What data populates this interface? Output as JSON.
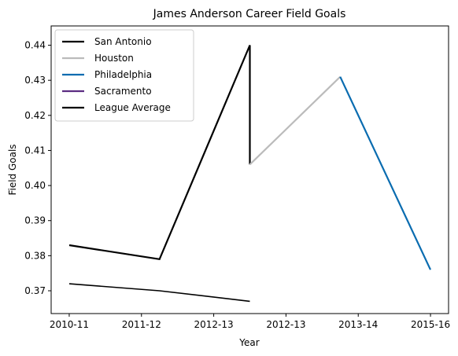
{
  "chart_data": {
    "type": "line",
    "title": "James Anderson  Career Field Goals",
    "xlabel": "Year",
    "ylabel": "Field Goals",
    "x_ticks": [
      "2010-11",
      "2011-12",
      "2012-13",
      "2012-13",
      "2013-14",
      "2015-16"
    ],
    "xlim": [
      -0.25,
      5.25
    ],
    "ylim": [
      0.3635,
      0.4455
    ],
    "y_ticks": [
      0.37,
      0.38,
      0.39,
      0.4,
      0.41,
      0.42,
      0.43,
      0.44
    ],
    "y_tick_labels": [
      "0.37",
      "0.38",
      "0.39",
      "0.40",
      "0.41",
      "0.42",
      "0.43",
      "0.44"
    ],
    "grid": false,
    "legend_placement": "top-left",
    "series": [
      {
        "name": "San Antonio",
        "color": "#000000",
        "points": [
          [
            0,
            0.383
          ],
          [
            1.25,
            0.379
          ],
          [
            2.5,
            0.44
          ],
          [
            2.5,
            0.406
          ]
        ]
      },
      {
        "name": "Houston",
        "color": "#bbbbbb",
        "points": [
          [
            2.5,
            0.406
          ],
          [
            3.75,
            0.431
          ]
        ]
      },
      {
        "name": "Philadelphia",
        "color": "#0a6cb0",
        "points": [
          [
            3.75,
            0.431
          ],
          [
            5,
            0.376
          ]
        ]
      },
      {
        "name": "Sacramento",
        "color": "#5b2d82",
        "points": []
      },
      {
        "name": "League Average",
        "color": "#000000",
        "thin": true,
        "points": [
          [
            0,
            0.372
          ],
          [
            1.25,
            0.37
          ],
          [
            2.5,
            0.367
          ]
        ]
      }
    ]
  }
}
